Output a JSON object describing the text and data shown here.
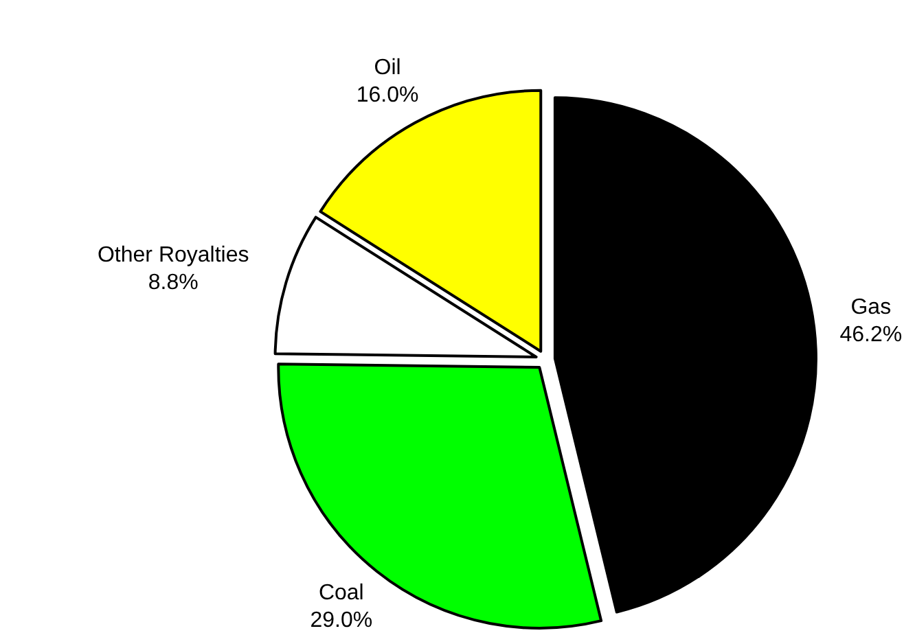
{
  "chart_data": {
    "type": "pie",
    "categories": [
      "Gas",
      "Coal",
      "Other Royalties",
      "Oil"
    ],
    "values": [
      46.2,
      29.0,
      8.8,
      16.0
    ],
    "colors": [
      "#000000",
      "#00ff00",
      "#ffffff",
      "#ffff00"
    ],
    "value_labels": [
      "46.2%",
      "29.0%",
      "8.8%",
      "16.0%"
    ]
  }
}
